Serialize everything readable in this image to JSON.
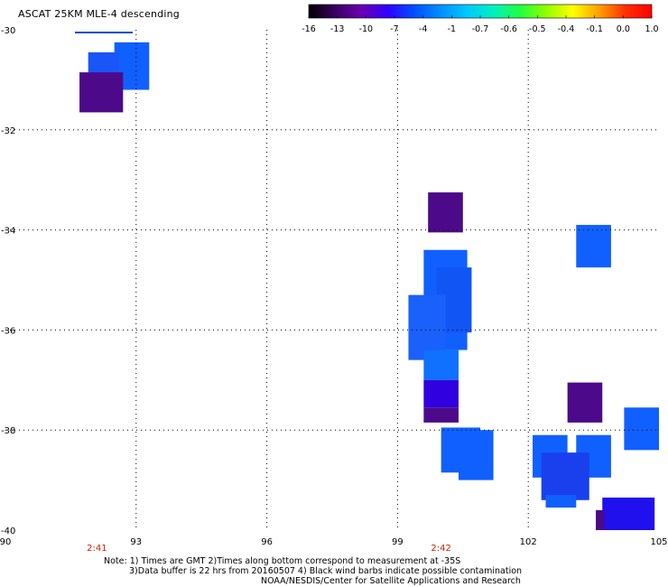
{
  "title": "ASCAT 25KM MLE-4 descending",
  "colorbar": {
    "labels": [
      "-16",
      "-13",
      "-10",
      "-7",
      "-4",
      "-1",
      "-0.7",
      "-0.6",
      "-0.5",
      "-0.4",
      "-0.1",
      "0.0",
      "1.0"
    ],
    "colors": [
      "#000000",
      "#3a0060",
      "#6a00b0",
      "#3000ff",
      "#0050ff",
      "#0090ff",
      "#00c8ff",
      "#00f0c0",
      "#20ff40",
      "#90ff00",
      "#ffff00",
      "#ffa000",
      "#ff3000",
      "#ff0000"
    ]
  },
  "axes": {
    "x_ticks": [
      "90",
      "93",
      "96",
      "99",
      "102",
      "105"
    ],
    "y_ticks": [
      "-30",
      "-32",
      "-34",
      "-36",
      "-38",
      "-40"
    ],
    "x_range": [
      90,
      105
    ],
    "y_range": [
      -40,
      -30
    ]
  },
  "time_labels": [
    {
      "text": "2:41",
      "lon": 92.1
    },
    {
      "text": "2:42",
      "lon": 100.0
    }
  ],
  "notes": {
    "line1": "Note: 1) Times are GMT 2)Times along bottom correspond to measurement at -35S",
    "line2": "3)Data buffer is 22 hrs from 20160507 4) Black wind barbs indicate possible contamination",
    "line3": "NOAA/NESDIS/Center for Satellite Applications and Research"
  },
  "legend_line_color": "#0050c8",
  "data_cells": [
    {
      "lon": [
        92.5,
        93.3
      ],
      "lat": [
        -30.25,
        -31.2
      ],
      "color": "#1060ff"
    },
    {
      "lon": [
        91.9,
        92.6
      ],
      "lat": [
        -30.45,
        -31.4
      ],
      "color": "#1a55f5"
    },
    {
      "lon": [
        91.7,
        92.7
      ],
      "lat": [
        -30.85,
        -31.65
      ],
      "color": "#4c0a8a"
    },
    {
      "lon": [
        99.7,
        100.5
      ],
      "lat": [
        -33.25,
        -34.05
      ],
      "color": "#4c0a8a"
    },
    {
      "lon": [
        103.1,
        103.9
      ],
      "lat": [
        -33.9,
        -34.75
      ],
      "color": "#1060ff"
    },
    {
      "lon": [
        99.6,
        100.6
      ],
      "lat": [
        -34.4,
        -36.4
      ],
      "color": "#1060ff"
    },
    {
      "lon": [
        99.9,
        100.7
      ],
      "lat": [
        -34.75,
        -36.05
      ],
      "color": "#1255f5"
    },
    {
      "lon": [
        99.25,
        100.1
      ],
      "lat": [
        -35.3,
        -36.6
      ],
      "color": "#1a60fb"
    },
    {
      "lon": [
        99.6,
        100.4
      ],
      "lat": [
        -36.4,
        -37.0
      ],
      "color": "#1070ff"
    },
    {
      "lon": [
        99.6,
        100.4
      ],
      "lat": [
        -37.0,
        -37.55
      ],
      "color": "#3000e0"
    },
    {
      "lon": [
        99.6,
        100.4
      ],
      "lat": [
        -37.55,
        -37.85
      ],
      "color": "#4c0a8a"
    },
    {
      "lon": [
        102.9,
        103.7
      ],
      "lat": [
        -37.05,
        -37.85
      ],
      "color": "#4c0a8a"
    },
    {
      "lon": [
        104.2,
        105.0
      ],
      "lat": [
        -37.55,
        -38.4
      ],
      "color": "#1060ff"
    },
    {
      "lon": [
        100.0,
        100.9
      ],
      "lat": [
        -37.95,
        -38.85
      ],
      "color": "#1060ff"
    },
    {
      "lon": [
        100.4,
        101.2
      ],
      "lat": [
        -38.0,
        -39.0
      ],
      "color": "#1060ff"
    },
    {
      "lon": [
        102.1,
        102.9
      ],
      "lat": [
        -38.1,
        -38.95
      ],
      "color": "#1060ff"
    },
    {
      "lon": [
        103.1,
        103.9
      ],
      "lat": [
        -38.1,
        -38.95
      ],
      "color": "#1060ff"
    },
    {
      "lon": [
        102.3,
        103.4
      ],
      "lat": [
        -38.45,
        -39.4
      ],
      "color": "#1a40ee"
    },
    {
      "lon": [
        102.4,
        103.1
      ],
      "lat": [
        -39.3,
        -39.55
      ],
      "color": "#1060ff"
    },
    {
      "lon": [
        103.7,
        104.9
      ],
      "lat": [
        -39.35,
        -40.0
      ],
      "color": "#2010ee"
    },
    {
      "lon": [
        103.55,
        103.75
      ],
      "lat": [
        -39.6,
        -40.0
      ],
      "color": "#4c0a8a"
    }
  ]
}
